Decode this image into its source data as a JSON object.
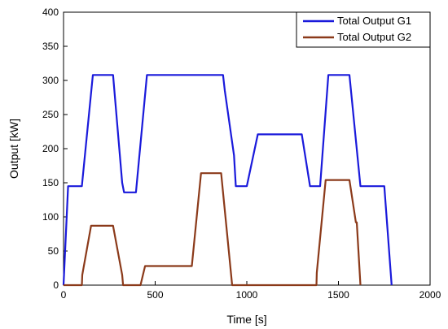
{
  "chart_data": {
    "type": "line",
    "xlabel": "Time [s]",
    "ylabel": "Output [kW]",
    "xlim": [
      0,
      2000
    ],
    "ylim": [
      0,
      400
    ],
    "x_ticks": [
      0,
      500,
      1000,
      1500,
      2000
    ],
    "y_ticks": [
      0,
      50,
      100,
      150,
      200,
      250,
      300,
      350,
      400
    ],
    "grid": false,
    "legend_position": "top-right",
    "series": [
      {
        "name": "Total Output G1",
        "color": "#1a1adb",
        "x": [
          0,
          25,
          100,
          160,
          270,
          320,
          330,
          345,
          395,
          455,
          870,
          880,
          930,
          940,
          1000,
          1060,
          1300,
          1345,
          1400,
          1445,
          1560,
          1620,
          1750,
          1790
        ],
        "y": [
          0,
          145,
          145,
          308,
          308,
          150,
          136,
          136,
          136,
          308,
          308,
          285,
          190,
          145,
          145,
          221,
          221,
          145,
          145,
          308,
          308,
          145,
          145,
          0
        ]
      },
      {
        "name": "Total Output G2",
        "color": "#8b3a1a",
        "x": [
          0,
          100,
          102,
          150,
          270,
          320,
          325,
          420,
          445,
          700,
          750,
          860,
          920,
          1380,
          1382,
          1430,
          1560,
          1595,
          1600,
          1620
        ],
        "y": [
          0,
          0,
          15,
          87,
          87,
          15,
          0,
          0,
          28,
          28,
          164,
          164,
          0,
          0,
          18,
          154,
          154,
          92,
          92,
          0
        ]
      }
    ]
  }
}
